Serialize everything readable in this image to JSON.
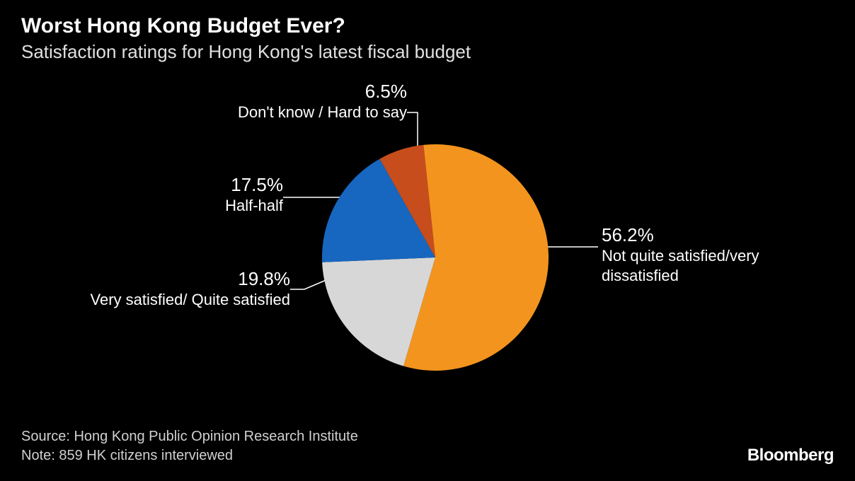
{
  "header": {
    "title": "Worst Hong Kong Budget Ever?",
    "subtitle": "Satisfaction ratings for Hong Kong's latest fiscal budget"
  },
  "chart": {
    "type": "pie",
    "radius": 160,
    "start_angle_deg": -6,
    "background_color": "#000000",
    "label_color": "#ffffff",
    "label_pct_fontsize": 26,
    "label_desc_fontsize": 22,
    "leader_stroke": "#ffffff",
    "slices": [
      {
        "label": "Not quite satisfied/very dissatisfied",
        "value": 56.2,
        "pct_label": "56.2%",
        "color": "#f3941e"
      },
      {
        "label": "Very satisfied/ Quite satisfied",
        "value": 19.8,
        "pct_label": "19.8%",
        "color": "#d7d7d7"
      },
      {
        "label": "Half-half",
        "value": 17.5,
        "pct_label": "17.5%",
        "color": "#1767c1"
      },
      {
        "label": "Don't know / Hard to say",
        "value": 6.5,
        "pct_label": "6.5%",
        "color": "#c74e1c"
      }
    ]
  },
  "footer": {
    "source": "Source: Hong Kong Public Opinion Research Institute",
    "note": "Note: 859 HK citizens interviewed",
    "brand": "Bloomberg"
  }
}
